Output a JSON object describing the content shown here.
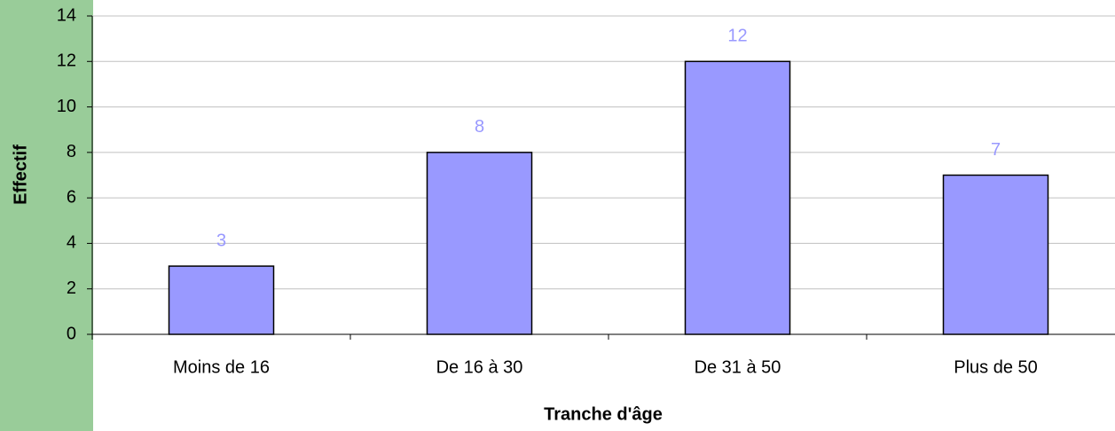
{
  "chart_data": {
    "type": "bar",
    "x_label": "Tranche d'âge",
    "y_label": "Effectif",
    "categories": [
      "Moins de 16",
      "De 16 à 30",
      "De 31 à 50",
      "Plus de 50"
    ],
    "values": [
      3,
      8,
      12,
      7
    ],
    "color": "#9999ff",
    "ylim": [
      0,
      14
    ],
    "yticks": [
      0,
      2,
      4,
      6,
      8,
      10,
      12,
      14
    ],
    "grid": true
  }
}
